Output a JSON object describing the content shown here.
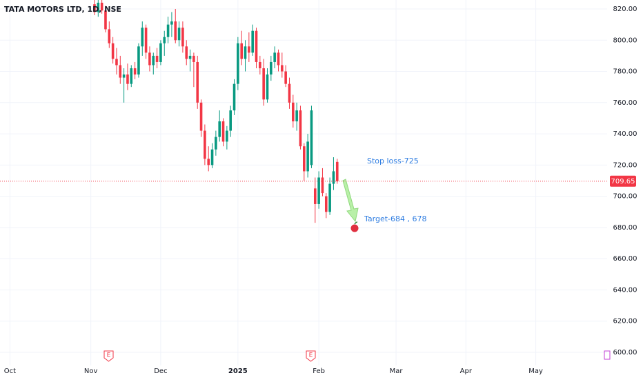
{
  "chart_data": {
    "type": "candlestick",
    "title": "TATA MOTORS LTD, 1D, NSE",
    "x": [
      0,
      1,
      2,
      3,
      4,
      5,
      6,
      7,
      8,
      9,
      10,
      11,
      12,
      13,
      14,
      15,
      16,
      17,
      18,
      19,
      20,
      21,
      22,
      23,
      24,
      25,
      26,
      27,
      28,
      29,
      30,
      31,
      32,
      33,
      34,
      35,
      36,
      37,
      38,
      39,
      40,
      41,
      42,
      43,
      44,
      45,
      46,
      47,
      48,
      49,
      50,
      51,
      52,
      53,
      54,
      55,
      56,
      57,
      58,
      59,
      60,
      61,
      62,
      63,
      64,
      65,
      66
    ],
    "open": [
      823,
      818,
      824,
      819,
      807,
      798,
      788,
      784,
      776,
      778,
      772,
      782,
      778,
      796,
      808,
      792,
      784,
      790,
      786,
      798,
      802,
      810,
      812,
      800,
      808,
      796,
      788,
      790,
      786,
      760,
      742,
      724,
      720,
      730,
      738,
      748,
      735,
      742,
      755,
      772,
      798,
      788,
      796,
      792,
      806,
      786,
      782,
      762,
      778,
      786,
      792,
      784,
      780,
      772,
      760,
      748,
      755,
      732,
      716,
      720,
      705,
      695,
      712,
      700,
      690,
      708,
      722
    ],
    "high": [
      828,
      826,
      828,
      822,
      812,
      802,
      795,
      790,
      782,
      785,
      784,
      786,
      798,
      812,
      810,
      796,
      792,
      795,
      800,
      806,
      815,
      818,
      820,
      812,
      812,
      800,
      794,
      792,
      790,
      762,
      746,
      732,
      734,
      742,
      755,
      750,
      745,
      758,
      775,
      802,
      806,
      800,
      805,
      810,
      808,
      790,
      788,
      782,
      790,
      796,
      794,
      792,
      784,
      776,
      765,
      760,
      758,
      734,
      740,
      758,
      712,
      716,
      718,
      702,
      712,
      725,
      724
    ],
    "low": [
      816,
      815,
      817,
      805,
      795,
      785,
      778,
      772,
      760,
      768,
      770,
      775,
      776,
      790,
      788,
      780,
      778,
      782,
      784,
      790,
      798,
      802,
      798,
      796,
      792,
      784,
      780,
      770,
      756,
      738,
      720,
      716,
      718,
      726,
      735,
      732,
      730,
      738,
      752,
      768,
      784,
      780,
      786,
      790,
      782,
      778,
      758,
      760,
      774,
      782,
      780,
      776,
      770,
      756,
      744,
      742,
      730,
      710,
      712,
      718,
      683,
      692,
      700,
      686,
      688,
      704,
      708
    ],
    "close": [
      818,
      824,
      819,
      807,
      798,
      788,
      784,
      776,
      778,
      772,
      782,
      778,
      796,
      808,
      792,
      784,
      790,
      786,
      798,
      802,
      810,
      812,
      800,
      808,
      796,
      788,
      790,
      786,
      760,
      742,
      724,
      720,
      730,
      738,
      748,
      735,
      742,
      755,
      772,
      798,
      788,
      796,
      792,
      806,
      786,
      782,
      762,
      778,
      786,
      792,
      784,
      780,
      772,
      760,
      748,
      755,
      732,
      716,
      735,
      755,
      695,
      712,
      702,
      690,
      708,
      716,
      709.65
    ],
    "up_color": "#089981",
    "down_color": "#f23645",
    "xlim": [
      -25.7,
      139.4
    ],
    "xticks": [
      {
        "value": -23,
        "label": "Oct"
      },
      {
        "value": -1,
        "label": "Nov"
      },
      {
        "value": 18,
        "label": "Dec"
      },
      {
        "value": 39,
        "label": "2025"
      },
      {
        "value": 61,
        "label": "Feb"
      },
      {
        "value": 82,
        "label": "Mar"
      },
      {
        "value": 101,
        "label": "Apr"
      },
      {
        "value": 120,
        "label": "May"
      }
    ],
    "ylim": [
      591.6,
      825.74
    ],
    "yticks": [
      {
        "value": 600,
        "label": "600.00"
      },
      {
        "value": 620,
        "label": "620.00"
      },
      {
        "value": 640,
        "label": "640.00"
      },
      {
        "value": 660,
        "label": "660.00"
      },
      {
        "value": 680,
        "label": "680.00"
      },
      {
        "value": 700,
        "label": "700.00"
      },
      {
        "value": 720,
        "label": "720.00"
      },
      {
        "value": 740,
        "label": "740.00"
      },
      {
        "value": 760,
        "label": "760.00"
      },
      {
        "value": 780,
        "label": "780.00"
      },
      {
        "value": 800,
        "label": "800.00"
      },
      {
        "value": 820,
        "label": "820.00"
      }
    ],
    "grid": true,
    "annotations": [
      "Stop loss-725",
      "Target-684 , 678"
    ]
  }
}
